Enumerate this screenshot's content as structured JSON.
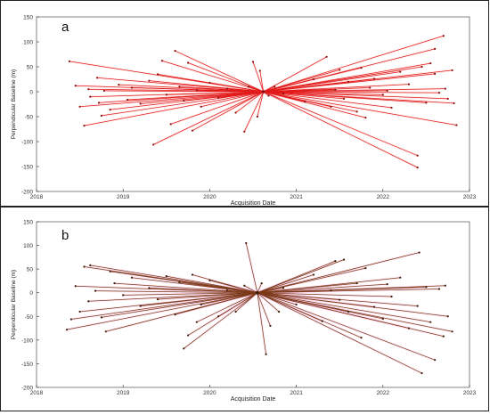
{
  "figure": {
    "background": "#ffffff"
  },
  "chart_data": [
    {
      "type": "scatter",
      "panel_label": "a",
      "title": "",
      "xlabel": "Acquisition Date",
      "ylabel": "Perpendicular Baseline (m)",
      "xlim": [
        2018.0,
        2023.0
      ],
      "ylim": [
        -200,
        150
      ],
      "xticks": [
        2018,
        2019,
        2020,
        2021,
        2022,
        2023
      ],
      "yticks": [
        -200,
        -150,
        -100,
        -50,
        0,
        50,
        100,
        150
      ],
      "grid": false,
      "legend": "none",
      "line_color": "#e21a1a",
      "point_color": "#8b1010",
      "master": {
        "x": 2020.62,
        "y": 0
      },
      "links": [
        {
          "x": 2018.38,
          "y": 61
        },
        {
          "x": 2018.45,
          "y": 12
        },
        {
          "x": 2018.5,
          "y": -30
        },
        {
          "x": 2018.55,
          "y": -68
        },
        {
          "x": 2018.6,
          "y": 5
        },
        {
          "x": 2018.62,
          "y": -10
        },
        {
          "x": 2018.7,
          "y": 28
        },
        {
          "x": 2018.72,
          "y": -22
        },
        {
          "x": 2018.75,
          "y": -48
        },
        {
          "x": 2018.78,
          "y": 2
        },
        {
          "x": 2018.85,
          "y": -36
        },
        {
          "x": 2018.95,
          "y": 14
        },
        {
          "x": 2019.05,
          "y": -16
        },
        {
          "x": 2019.1,
          "y": 8
        },
        {
          "x": 2019.2,
          "y": -24
        },
        {
          "x": 2019.3,
          "y": 22
        },
        {
          "x": 2019.35,
          "y": -106
        },
        {
          "x": 2019.4,
          "y": 35
        },
        {
          "x": 2019.45,
          "y": 62
        },
        {
          "x": 2019.5,
          "y": -6
        },
        {
          "x": 2019.55,
          "y": -65
        },
        {
          "x": 2019.6,
          "y": 82
        },
        {
          "x": 2019.65,
          "y": 10
        },
        {
          "x": 2019.7,
          "y": -18
        },
        {
          "x": 2019.75,
          "y": 58
        },
        {
          "x": 2019.8,
          "y": -78
        },
        {
          "x": 2019.85,
          "y": 3
        },
        {
          "x": 2019.9,
          "y": -30
        },
        {
          "x": 2020.0,
          "y": 18
        },
        {
          "x": 2020.1,
          "y": -12
        },
        {
          "x": 2020.2,
          "y": 6
        },
        {
          "x": 2020.3,
          "y": -42
        },
        {
          "x": 2020.4,
          "y": -80
        },
        {
          "x": 2020.45,
          "y": 10
        },
        {
          "x": 2020.5,
          "y": 60
        },
        {
          "x": 2020.55,
          "y": -50
        },
        {
          "x": 2020.58,
          "y": 42
        },
        {
          "x": 2020.68,
          "y": -8
        },
        {
          "x": 2020.75,
          "y": 10
        },
        {
          "x": 2020.85,
          "y": -4
        },
        {
          "x": 2021.1,
          "y": -20
        },
        {
          "x": 2021.2,
          "y": 25
        },
        {
          "x": 2021.35,
          "y": 70
        },
        {
          "x": 2021.4,
          "y": -30
        },
        {
          "x": 2021.45,
          "y": 4
        },
        {
          "x": 2021.5,
          "y": 44
        },
        {
          "x": 2021.55,
          "y": -14
        },
        {
          "x": 2021.6,
          "y": 20
        },
        {
          "x": 2021.7,
          "y": -40
        },
        {
          "x": 2021.75,
          "y": 48
        },
        {
          "x": 2021.8,
          "y": -52
        },
        {
          "x": 2021.85,
          "y": 8
        },
        {
          "x": 2021.9,
          "y": 26
        },
        {
          "x": 2022.0,
          "y": -6
        },
        {
          "x": 2022.05,
          "y": 2
        },
        {
          "x": 2022.1,
          "y": -32
        },
        {
          "x": 2022.2,
          "y": 40
        },
        {
          "x": 2022.3,
          "y": 15
        },
        {
          "x": 2022.4,
          "y": -128
        },
        {
          "x": 2022.4,
          "y": -152
        },
        {
          "x": 2022.45,
          "y": 50
        },
        {
          "x": 2022.5,
          "y": -22
        },
        {
          "x": 2022.55,
          "y": 57
        },
        {
          "x": 2022.6,
          "y": 36
        },
        {
          "x": 2022.6,
          "y": 86
        },
        {
          "x": 2022.65,
          "y": -2
        },
        {
          "x": 2022.7,
          "y": 112
        },
        {
          "x": 2022.72,
          "y": 6
        },
        {
          "x": 2022.75,
          "y": -14
        },
        {
          "x": 2022.8,
          "y": 43
        },
        {
          "x": 2022.82,
          "y": -23
        },
        {
          "x": 2022.85,
          "y": -67
        }
      ]
    },
    {
      "type": "scatter",
      "panel_label": "b",
      "title": "",
      "xlabel": "Acquisition Date",
      "ylabel": "Perpendicular Baseline (m)",
      "xlim": [
        2018.0,
        2023.0
      ],
      "ylim": [
        -200,
        150
      ],
      "xticks": [
        2018,
        2019,
        2020,
        2021,
        2022,
        2023
      ],
      "yticks": [
        -200,
        -150,
        -100,
        -50,
        0,
        50,
        100,
        150
      ],
      "grid": false,
      "legend": "none",
      "line_color": "#7a3a18",
      "point_color": "#3a1a08",
      "master": {
        "x": 2020.55,
        "y": 0
      },
      "links": [
        {
          "x": 2018.35,
          "y": -78
        },
        {
          "x": 2018.4,
          "y": -56
        },
        {
          "x": 2018.45,
          "y": 14
        },
        {
          "x": 2018.5,
          "y": -40
        },
        {
          "x": 2018.55,
          "y": 55
        },
        {
          "x": 2018.6,
          "y": -18
        },
        {
          "x": 2018.62,
          "y": 58
        },
        {
          "x": 2018.68,
          "y": 4
        },
        {
          "x": 2018.75,
          "y": -52
        },
        {
          "x": 2018.8,
          "y": -82
        },
        {
          "x": 2018.85,
          "y": 45
        },
        {
          "x": 2018.9,
          "y": 20
        },
        {
          "x": 2019.0,
          "y": -5
        },
        {
          "x": 2019.1,
          "y": 32
        },
        {
          "x": 2019.2,
          "y": -28
        },
        {
          "x": 2019.3,
          "y": 10
        },
        {
          "x": 2019.4,
          "y": -14
        },
        {
          "x": 2019.5,
          "y": 35
        },
        {
          "x": 2019.6,
          "y": -46
        },
        {
          "x": 2019.65,
          "y": 22
        },
        {
          "x": 2019.7,
          "y": -118
        },
        {
          "x": 2019.75,
          "y": -90
        },
        {
          "x": 2019.8,
          "y": 38
        },
        {
          "x": 2019.85,
          "y": -62
        },
        {
          "x": 2019.9,
          "y": -25
        },
        {
          "x": 2020.0,
          "y": 26
        },
        {
          "x": 2020.1,
          "y": -50
        },
        {
          "x": 2020.2,
          "y": 5
        },
        {
          "x": 2020.3,
          "y": -40
        },
        {
          "x": 2020.4,
          "y": 15
        },
        {
          "x": 2020.42,
          "y": 105
        },
        {
          "x": 2020.6,
          "y": 20
        },
        {
          "x": 2020.65,
          "y": -130
        },
        {
          "x": 2020.7,
          "y": -70
        },
        {
          "x": 2020.8,
          "y": -40
        },
        {
          "x": 2020.85,
          "y": 10
        },
        {
          "x": 2021.0,
          "y": -25
        },
        {
          "x": 2021.2,
          "y": 38
        },
        {
          "x": 2021.3,
          "y": -60
        },
        {
          "x": 2021.4,
          "y": 5
        },
        {
          "x": 2021.45,
          "y": 67
        },
        {
          "x": 2021.5,
          "y": -15
        },
        {
          "x": 2021.55,
          "y": 70
        },
        {
          "x": 2021.6,
          "y": -40
        },
        {
          "x": 2021.7,
          "y": 20
        },
        {
          "x": 2021.75,
          "y": -95
        },
        {
          "x": 2021.8,
          "y": 52
        },
        {
          "x": 2021.9,
          "y": -30
        },
        {
          "x": 2022.0,
          "y": -55
        },
        {
          "x": 2022.05,
          "y": 18
        },
        {
          "x": 2022.1,
          "y": -8
        },
        {
          "x": 2022.2,
          "y": 32
        },
        {
          "x": 2022.3,
          "y": -75
        },
        {
          "x": 2022.4,
          "y": -28
        },
        {
          "x": 2022.42,
          "y": 85
        },
        {
          "x": 2022.45,
          "y": -170
        },
        {
          "x": 2022.5,
          "y": 12
        },
        {
          "x": 2022.55,
          "y": -62
        },
        {
          "x": 2022.6,
          "y": -142
        },
        {
          "x": 2022.65,
          "y": 8
        },
        {
          "x": 2022.7,
          "y": -92
        },
        {
          "x": 2022.72,
          "y": 15
        },
        {
          "x": 2022.75,
          "y": -50
        },
        {
          "x": 2022.8,
          "y": -82
        }
      ]
    }
  ]
}
